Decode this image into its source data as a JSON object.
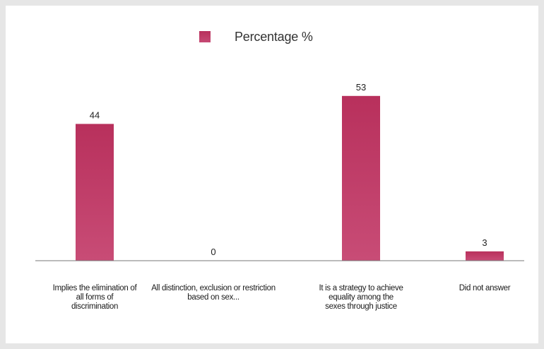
{
  "chart_data": {
    "type": "bar",
    "legend": {
      "label": "Percentage %",
      "placement": "top"
    },
    "categories": [
      "Implies the elimination of all forms of discrimination",
      "All distinction, exclusion or restriction based on sex...",
      "It is a strategy to achieve equality among the sexes through justice",
      "Did not answer"
    ],
    "series": [
      {
        "name": "Percentage %",
        "values": [
          44,
          0,
          53,
          3
        ]
      }
    ],
    "data_labels": [
      "44",
      "0",
      "53",
      "3"
    ],
    "grid": false,
    "colors": {
      "bar": "#b8305c",
      "bar_light": "#c84c76",
      "axis": "#777777"
    }
  }
}
